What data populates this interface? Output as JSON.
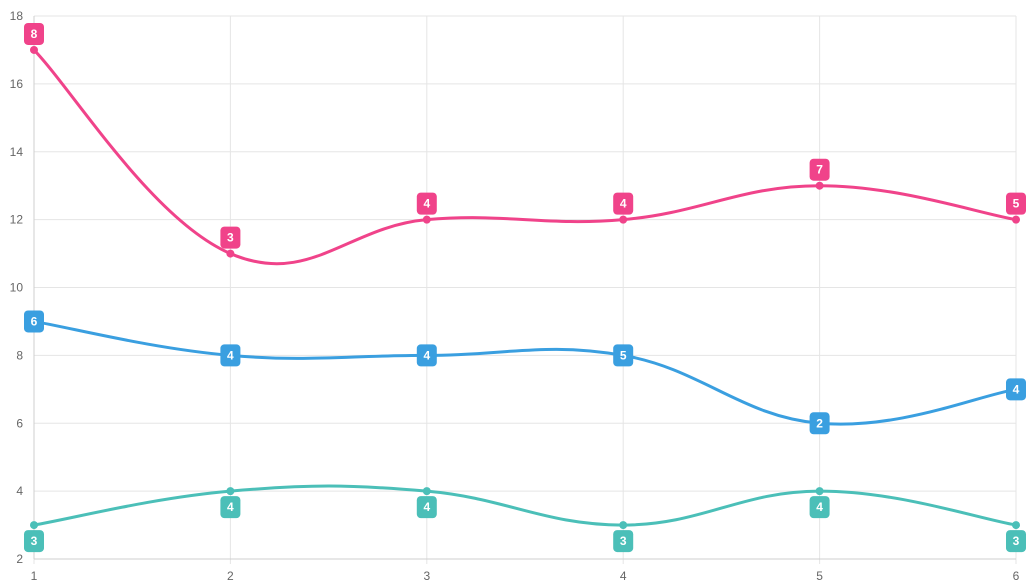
{
  "chart_data": {
    "type": "line",
    "x": [
      1,
      2,
      3,
      4,
      5,
      6
    ],
    "xlim": [
      1,
      6
    ],
    "ylim": [
      2,
      18
    ],
    "y_ticks": [
      2,
      4,
      6,
      8,
      10,
      12,
      14,
      16,
      18
    ],
    "x_ticks": [
      1,
      2,
      3,
      4,
      5,
      6
    ],
    "grid": true,
    "title": "",
    "xlabel": "",
    "ylabel": "",
    "series": [
      {
        "color": "#f0438a",
        "values": [
          17,
          11,
          12,
          12,
          13,
          12
        ],
        "data_labels": [
          "8",
          "3",
          "4",
          "4",
          "7",
          "5"
        ],
        "label_position": "above"
      },
      {
        "color": "#3a9fe0",
        "values": [
          9,
          8,
          8,
          8,
          6,
          7
        ],
        "data_labels": [
          "6",
          "4",
          "4",
          "5",
          "2",
          "4"
        ],
        "label_position": "on"
      },
      {
        "color": "#4bbfb8",
        "values": [
          3,
          4,
          4,
          3,
          4,
          3
        ],
        "data_labels": [
          "3",
          "4",
          "4",
          "3",
          "4",
          "3"
        ],
        "label_position": "below"
      }
    ]
  }
}
